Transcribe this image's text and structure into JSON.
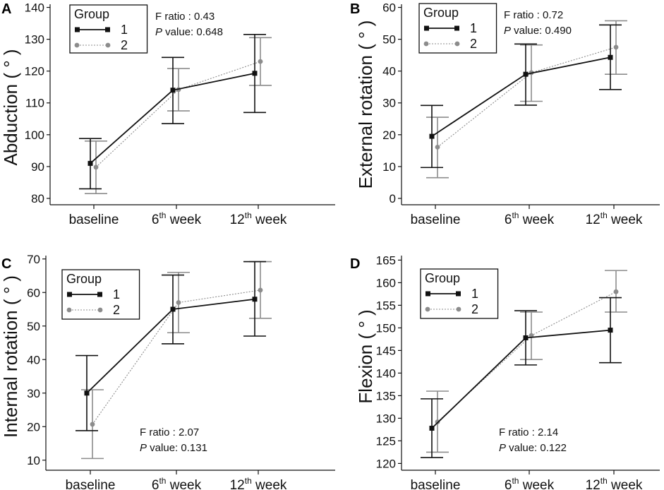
{
  "chart_data": [
    {
      "type": "line",
      "panel": "A",
      "ylabel": "Abduction ( ° )",
      "categories": [
        "baseline",
        "6",
        "12"
      ],
      "category_suffix": "th week",
      "ylim": [
        78,
        141
      ],
      "yticks": [
        80,
        90,
        100,
        110,
        120,
        130,
        140
      ],
      "legend_title": "Group",
      "annotation": {
        "f_label": "F ratio : 0.43",
        "p_label": "P",
        "p_value": " value: 0.648",
        "position": "top"
      },
      "series": [
        {
          "name": "1",
          "color": "#111111",
          "style": "solid",
          "marker": "square",
          "values": [
            91,
            114,
            119.3
          ],
          "lower": [
            83,
            103.5,
            107
          ],
          "upper": [
            98.8,
            124.3,
            131.5
          ]
        },
        {
          "name": "2",
          "color": "#8c8c8c",
          "style": "dotted",
          "marker": "circle",
          "values": [
            89.8,
            114.2,
            123
          ],
          "lower": [
            81.5,
            107.5,
            115.5
          ],
          "upper": [
            98,
            120.8,
            130.5
          ]
        }
      ]
    },
    {
      "type": "line",
      "panel": "B",
      "ylabel": "External rotation ( ° )",
      "categories": [
        "baseline",
        "6",
        "12"
      ],
      "category_suffix": "th week",
      "ylim": [
        -2,
        61
      ],
      "yticks": [
        0,
        10,
        20,
        30,
        40,
        50,
        60
      ],
      "legend_title": "Group",
      "annotation": {
        "f_label": "F ratio : 0.72",
        "p_label": "P",
        "p_value": " value: 0.490",
        "position": "top"
      },
      "series": [
        {
          "name": "1",
          "color": "#111111",
          "style": "solid",
          "marker": "square",
          "values": [
            19.5,
            39,
            44.3
          ],
          "lower": [
            9.7,
            29.3,
            34.2
          ],
          "upper": [
            29.2,
            48.5,
            54.5
          ]
        },
        {
          "name": "2",
          "color": "#8c8c8c",
          "style": "dotted",
          "marker": "circle",
          "values": [
            16.1,
            39.5,
            47.5
          ],
          "lower": [
            6.5,
            30.5,
            39
          ],
          "upper": [
            25.5,
            48.2,
            55.8
          ]
        }
      ]
    },
    {
      "type": "line",
      "panel": "C",
      "ylabel": "Internal rotation ( ° )",
      "categories": [
        "baseline",
        "6",
        "12"
      ],
      "category_suffix": "th week",
      "ylim": [
        7,
        71
      ],
      "yticks": [
        10,
        20,
        30,
        40,
        50,
        60,
        70
      ],
      "legend_title": "Group",
      "annotation": {
        "f_label": "F ratio : 2.07",
        "p_label": "P",
        "p_value": " value: 0.131",
        "position": "bottom"
      },
      "series": [
        {
          "name": "1",
          "color": "#111111",
          "style": "solid",
          "marker": "square",
          "values": [
            30,
            55,
            58
          ],
          "lower": [
            18.8,
            44.7,
            47
          ],
          "upper": [
            41.2,
            65.2,
            69.2
          ]
        },
        {
          "name": "2",
          "color": "#8c8c8c",
          "style": "dotted",
          "marker": "circle",
          "values": [
            20.7,
            57,
            60.7
          ],
          "lower": [
            10.5,
            48,
            52.3
          ],
          "upper": [
            31,
            66,
            69.2
          ]
        }
      ]
    },
    {
      "type": "line",
      "panel": "D",
      "ylabel": "Flexion ( ° )",
      "categories": [
        "baseline",
        "6",
        "12"
      ],
      "category_suffix": "th week",
      "ylim": [
        118.5,
        166
      ],
      "yticks": [
        120,
        125,
        130,
        135,
        140,
        145,
        150,
        155,
        160,
        165
      ],
      "legend_title": "Group",
      "annotation": {
        "f_label": "F ratio : 2.14",
        "p_label": "P",
        "p_value": " value: 0.122",
        "position": "bottom"
      },
      "series": [
        {
          "name": "1",
          "color": "#111111",
          "style": "solid",
          "marker": "square",
          "values": [
            127.8,
            147.8,
            149.5
          ],
          "lower": [
            121.3,
            141.8,
            142.3
          ],
          "upper": [
            134.3,
            153.8,
            156.7
          ]
        },
        {
          "name": "2",
          "color": "#8c8c8c",
          "style": "dotted",
          "marker": "circle",
          "values": [
            129.2,
            148.3,
            158
          ],
          "lower": [
            122.5,
            143,
            153.5
          ],
          "upper": [
            136,
            153.5,
            162.7
          ]
        }
      ]
    }
  ]
}
